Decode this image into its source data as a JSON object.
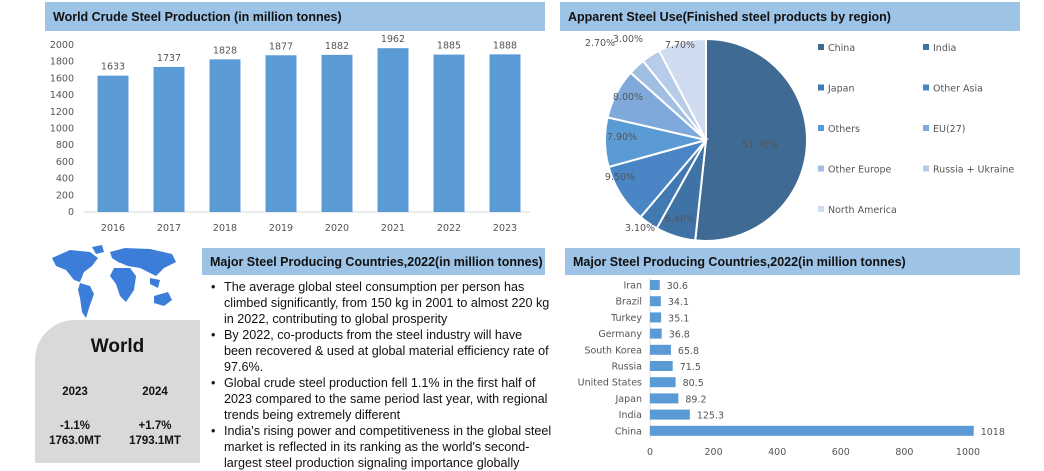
{
  "chart_data": [
    {
      "type": "bar",
      "title": "World Crude Steel Production (in million tonnes)",
      "categories": [
        "2016",
        "2017",
        "2018",
        "2019",
        "2020",
        "2021",
        "2022",
        "2023"
      ],
      "values": [
        1633,
        1737,
        1828,
        1877,
        1882,
        1962,
        1885,
        1888
      ],
      "ylim": [
        0,
        2000
      ],
      "yticks": [
        "0",
        "200",
        "400",
        "600",
        "800",
        "1000",
        "1200",
        "1400",
        "1600",
        "1800",
        "2000"
      ],
      "color": "#5b9bd5",
      "grid": false
    },
    {
      "type": "pie",
      "title": "Apparent Steel Use(Finished steel products by region)",
      "labels": [
        "China",
        "India",
        "Japan",
        "Other Asia",
        "Others",
        "EU(27)",
        "Other Europe",
        "Russia + Ukraine",
        "North America"
      ],
      "values": [
        51.7,
        6.4,
        3.1,
        9.5,
        7.9,
        8.0,
        2.7,
        3.0,
        7.7
      ],
      "value_labels": [
        "51.70%",
        "6.40%",
        "3.10%",
        "9.50%",
        "7.90%",
        "8.00%",
        "2.70%",
        "3.00%",
        "7.70%"
      ],
      "colors": [
        "#3e6a93",
        "#3f73a6",
        "#4179b2",
        "#4a86c5",
        "#5b9bd5",
        "#7fa9da",
        "#a1bfe3",
        "#b6cce9",
        "#cfdcef"
      ],
      "legend": "right"
    },
    {
      "type": "bar",
      "orientation": "horizontal",
      "title": "Major Steel Producing Countries,2022(in million tonnes)",
      "categories": [
        "Iran",
        "Brazil",
        "Turkey",
        "Germany",
        "South Korea",
        "Russia",
        "United States",
        "Japan",
        "India",
        "China"
      ],
      "values": [
        30.6,
        34.1,
        35.1,
        36.8,
        65.8,
        71.5,
        80.5,
        89.2,
        125.3,
        1018
      ],
      "value_labels": [
        "30.6",
        "34.1",
        "35.1",
        "36.8",
        "65.8",
        "71.5",
        "80.5",
        "89.2",
        "125.3",
        "1018"
      ],
      "xlim": [
        0,
        1000
      ],
      "xticks": [
        "0",
        "200",
        "400",
        "600",
        "800",
        "1000"
      ],
      "color": "#5b9bd5"
    }
  ],
  "middle": {
    "title": "Major Steel Producing Countries,2022(in million tonnes)",
    "bullets": [
      "The average global steel consumption per person has climbed significantly, from 150 kg in 2001 to almost 220 kg in 2022, contributing to global prosperity",
      "By 2022, co-products from the steel industry will have been recovered & used at global material efficiency rate of 97.6%.",
      "Global crude steel production fell 1.1% in the first half of 2023 compared to the same period last year, with regional trends being extremely different",
      "India's rising power and competitiveness in the global steel market is reflected in its ranking as the world's second-largest steel production signaling importance globally"
    ]
  },
  "world": {
    "title": "World",
    "years": [
      {
        "year": "2023",
        "change": "-1.1%",
        "value": "1763.0MT"
      },
      {
        "year": "2024",
        "change": "+1.7%",
        "value": "1793.1MT"
      }
    ],
    "map_color": "#3b7dd8"
  }
}
